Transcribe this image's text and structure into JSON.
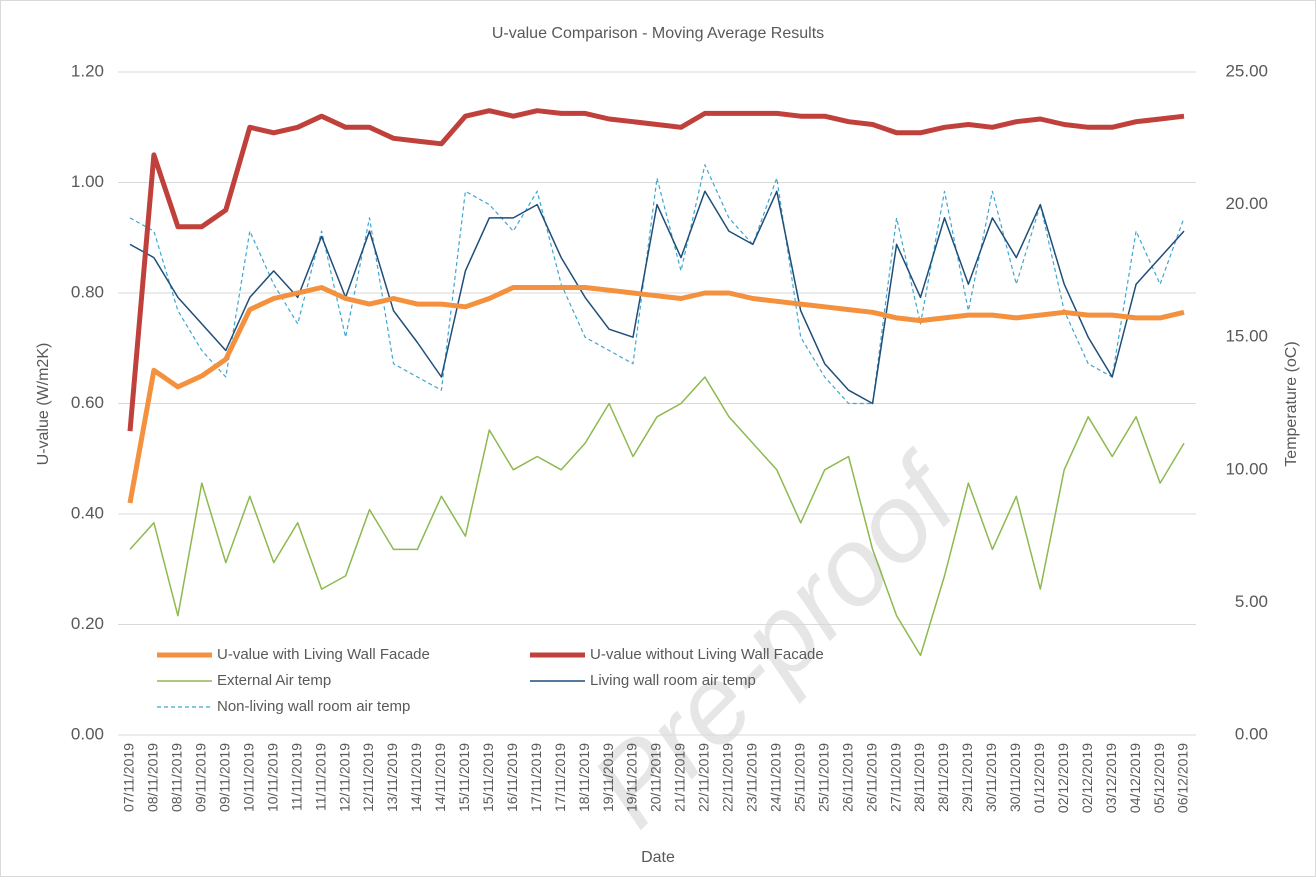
{
  "chart_data": {
    "type": "line",
    "title": "U-value Comparison - Moving Average Results",
    "x_label": "Date",
    "y_label": "U-value (W/m2K)",
    "y2_label": "Temperature (oC)",
    "watermark": "Pre-proof",
    "categories": [
      "07/11/2019",
      "08/11/2019",
      "08/11/2019",
      "09/11/2019",
      "09/11/2019",
      "10/11/2019",
      "10/11/2019",
      "11/11/2019",
      "11/11/2019",
      "12/11/2019",
      "12/11/2019",
      "13/11/2019",
      "14/11/2019",
      "14/11/2019",
      "15/11/2019",
      "15/11/2019",
      "16/11/2019",
      "17/11/2019",
      "17/11/2019",
      "18/11/2019",
      "19/11/2019",
      "19/11/2019",
      "20/11/2019",
      "21/11/2019",
      "22/11/2019",
      "22/11/2019",
      "23/11/2019",
      "24/11/2019",
      "25/11/2019",
      "25/11/2019",
      "26/11/2019",
      "26/11/2019",
      "27/11/2019",
      "28/11/2019",
      "28/11/2019",
      "29/11/2019",
      "30/11/2019",
      "30/11/2019",
      "01/12/2019",
      "02/12/2019",
      "02/12/2019",
      "03/12/2019",
      "04/12/2019",
      "05/12/2019",
      "06/12/2019"
    ],
    "ylim": [
      0,
      1.2
    ],
    "yticks": [
      {
        "value": 0,
        "label": "0.00"
      },
      {
        "value": 0.2,
        "label": "0.20"
      },
      {
        "value": 0.4,
        "label": "0.40"
      },
      {
        "value": 0.6,
        "label": "0.60"
      },
      {
        "value": 0.8,
        "label": "0.80"
      },
      {
        "value": 1.0,
        "label": "1.00"
      },
      {
        "value": 1.2,
        "label": "1.20"
      }
    ],
    "y2lim": [
      0,
      25
    ],
    "y2ticks": [
      {
        "value": 0,
        "label": "0.00"
      },
      {
        "value": 5,
        "label": "5.00"
      },
      {
        "value": 10,
        "label": "10.00"
      },
      {
        "value": 15,
        "label": "15.00"
      },
      {
        "value": 20,
        "label": "20.00"
      },
      {
        "value": 25,
        "label": "25.00"
      }
    ],
    "grid": true,
    "legend": "lower left",
    "series": [
      {
        "name": "U-value with Living Wall Facade",
        "color": "#f4913e",
        "width": 5,
        "dashed": false,
        "values": [
          0.42,
          0.66,
          0.63,
          0.65,
          0.68,
          0.77,
          0.79,
          0.8,
          0.81,
          0.79,
          0.78,
          0.79,
          0.78,
          0.78,
          0.775,
          0.79,
          0.81,
          0.81,
          0.81,
          0.81,
          0.805,
          0.8,
          0.795,
          0.79,
          0.8,
          0.8,
          0.79,
          0.785,
          0.78,
          0.775,
          0.77,
          0.765,
          0.755,
          0.75,
          0.755,
          0.76,
          0.76,
          0.755,
          0.76,
          0.765,
          0.76,
          0.76,
          0.755,
          0.755,
          0.765
        ]
      },
      {
        "name": "U-value without Living Wall Facade",
        "color": "#c0403c",
        "width": 5,
        "dashed": false,
        "values": [
          0.55,
          1.05,
          0.92,
          0.92,
          0.95,
          1.1,
          1.09,
          1.1,
          1.12,
          1.1,
          1.1,
          1.08,
          1.075,
          1.07,
          1.12,
          1.13,
          1.12,
          1.13,
          1.125,
          1.125,
          1.115,
          1.11,
          1.105,
          1.1,
          1.125,
          1.125,
          1.125,
          1.125,
          1.12,
          1.12,
          1.11,
          1.105,
          1.09,
          1.09,
          1.1,
          1.105,
          1.1,
          1.11,
          1.115,
          1.105,
          1.1,
          1.1,
          1.11,
          1.115,
          1.12
        ]
      },
      {
        "name": "External Air temp",
        "color": "#8db94e",
        "width": 1.5,
        "dashed": false,
        "axis": "y2",
        "values": [
          7,
          8,
          4.5,
          9.5,
          6.5,
          9,
          6.5,
          8,
          5.5,
          6,
          8.5,
          7,
          7,
          9,
          7.5,
          11.5,
          10,
          10.5,
          10,
          11,
          12.5,
          10.5,
          12,
          12.5,
          13.5,
          12,
          11,
          10,
          8,
          10,
          10.5,
          7,
          4.5,
          3,
          6,
          9.5,
          7,
          9,
          5.5,
          10,
          12,
          10.5,
          12,
          9.5,
          11
        ]
      },
      {
        "name": "Living wall room air temp",
        "color": "#1f4e79",
        "width": 1.5,
        "dashed": false,
        "axis": "y2",
        "values": [
          18.5,
          18,
          16.5,
          15.5,
          14.5,
          16.5,
          17.5,
          16.5,
          18.8,
          16.5,
          19,
          16,
          14.8,
          13.5,
          17.5,
          19.5,
          19.5,
          20,
          18,
          16.5,
          15.3,
          15,
          20,
          18,
          20.5,
          19,
          18.5,
          20.5,
          16,
          14,
          13,
          12.5,
          18.5,
          16.5,
          19.5,
          17,
          19.5,
          18,
          20,
          17,
          15,
          13.5,
          17,
          18,
          19
        ]
      },
      {
        "name": "Non-living wall room air temp",
        "color": "#3ea7cf",
        "width": 1.2,
        "dashed": true,
        "axis": "y2",
        "values": [
          19.5,
          19,
          16,
          14.5,
          13.5,
          19,
          17,
          15.5,
          19,
          15,
          19.5,
          14,
          13.5,
          13,
          20.5,
          20,
          19,
          20.5,
          17,
          15,
          14.5,
          14,
          21,
          17.5,
          21.5,
          19.5,
          18.5,
          21,
          15,
          13.5,
          12.5,
          12.5,
          19.5,
          15.5,
          20.5,
          16,
          20.5,
          17,
          20,
          16,
          14,
          13.5,
          19,
          17,
          19.5
        ]
      }
    ]
  }
}
